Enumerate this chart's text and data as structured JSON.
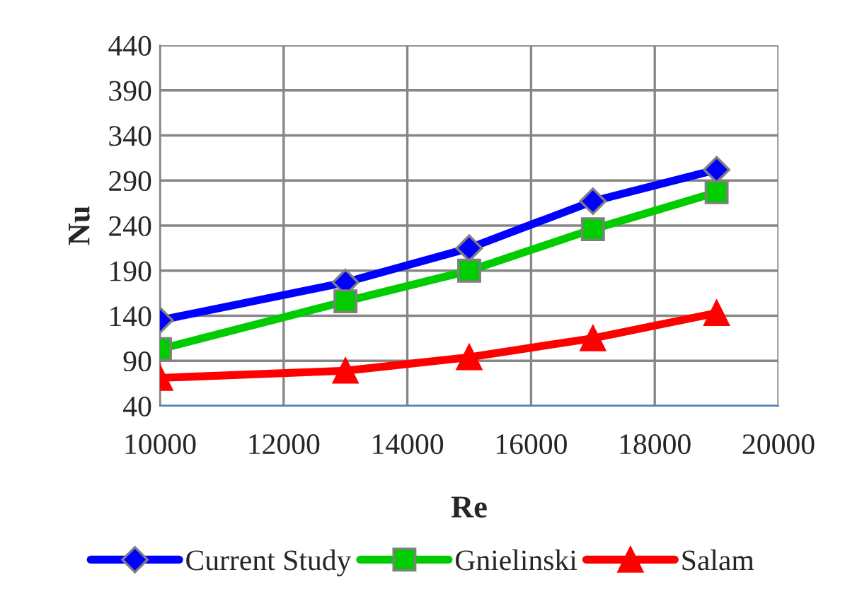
{
  "chart_data": {
    "type": "line",
    "xlabel": "Re",
    "ylabel": "Nu",
    "x": [
      10000,
      13000,
      15000,
      17000,
      19000
    ],
    "series": [
      {
        "name": "Current Study",
        "color": "#0000ff",
        "marker": "diamond",
        "values": [
          135,
          177,
          215,
          267,
          302
        ]
      },
      {
        "name": "Gnielinski",
        "color": "#00cc00",
        "marker": "square",
        "values": [
          103,
          156,
          190,
          236,
          277
        ]
      },
      {
        "name": "Salam",
        "color": "#ff0000",
        "marker": "triangle",
        "values": [
          71,
          79,
          94,
          115,
          143
        ]
      }
    ],
    "xlim": [
      10000,
      20000
    ],
    "xticks": [
      10000,
      12000,
      14000,
      16000,
      18000,
      20000
    ],
    "ylim": [
      40,
      440
    ],
    "yticks": [
      40,
      90,
      140,
      190,
      240,
      290,
      340,
      390,
      440
    ],
    "grid": true,
    "legend": "bottom",
    "line_style": "solid"
  }
}
